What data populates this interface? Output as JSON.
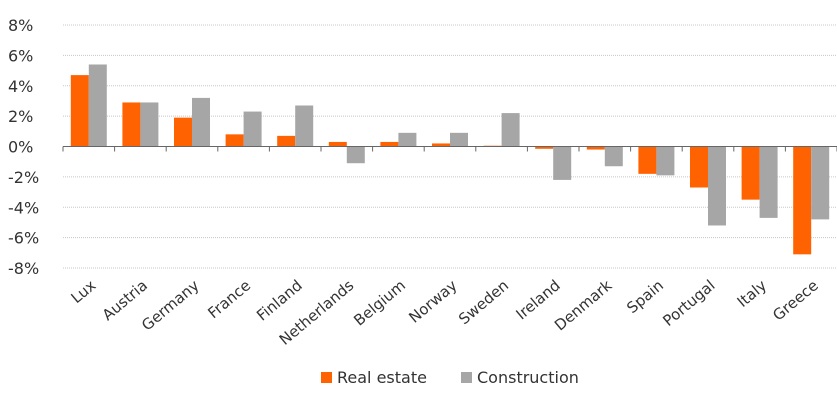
{
  "chart_data": {
    "type": "bar",
    "categories": [
      "Lux",
      "Austria",
      "Germany",
      "France",
      "Finland",
      "Netherlands",
      "Belgium",
      "Norway",
      "Sweden",
      "Ireland",
      "Denmark",
      "Spain",
      "Portugal",
      "Italy",
      "Greece"
    ],
    "series": [
      {
        "name": "Real estate",
        "color": "#ff6200",
        "values": [
          4.7,
          2.9,
          1.9,
          0.8,
          0.7,
          0.3,
          0.3,
          0.2,
          0.05,
          -0.15,
          -0.2,
          -1.8,
          -2.7,
          -3.5,
          -7.1
        ]
      },
      {
        "name": "Construction",
        "color": "#a6a6a6",
        "values": [
          5.4,
          2.9,
          3.2,
          2.3,
          2.7,
          -1.1,
          0.9,
          0.9,
          2.2,
          -2.2,
          -1.3,
          -1.9,
          -5.2,
          -4.7,
          -4.8
        ]
      }
    ],
    "yticks": [
      "8%",
      "6%",
      "4%",
      "2%",
      "0%",
      "-2%",
      "-4%",
      "-6%",
      "-8%"
    ],
    "ytick_values": [
      8,
      6,
      4,
      2,
      0,
      -2,
      -4,
      -6,
      -8
    ],
    "ylim": [
      -8,
      8
    ],
    "grid": true,
    "legend_position": "bottom-center"
  }
}
